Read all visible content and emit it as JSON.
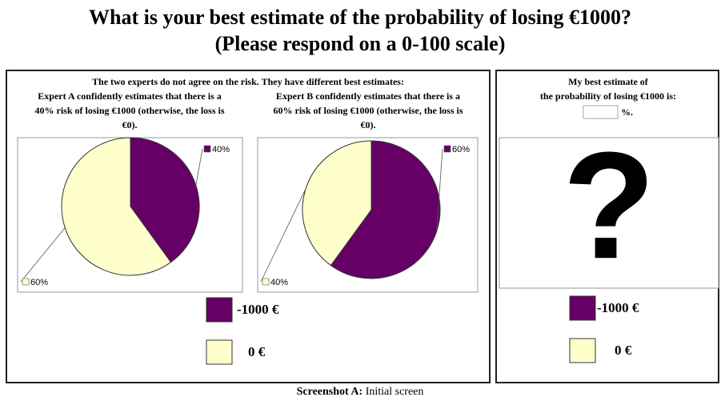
{
  "title": "What is your best estimate of the probability of losing €1000?",
  "subtitle": "(Please respond on a 0-100 scale)",
  "left_panel": {
    "heading": "The two experts do not agree on the risk.  They have different best estimates:",
    "experts": [
      {
        "lines": [
          "Expert A confidently estimates that there is a",
          "40% risk of losing €1000 (otherwise, the loss is",
          "€0)."
        ],
        "pie": {
          "type": "pie",
          "values": [
            40,
            60
          ],
          "value_labels": [
            "40%",
            "60%"
          ],
          "colors": [
            "#660066",
            "#ffffcc"
          ]
        }
      },
      {
        "lines": [
          "Expert B confidently estimates that there is a",
          "60% risk of losing €1000 (otherwise, the loss is",
          "€0)."
        ],
        "pie": {
          "type": "pie",
          "values": [
            60,
            40
          ],
          "value_labels": [
            "60%",
            "40%"
          ],
          "colors": [
            "#660066",
            "#ffffcc"
          ]
        }
      }
    ]
  },
  "legend": [
    {
      "name": "-1000 €",
      "color": "#660066"
    },
    {
      "name": "0 €",
      "color": "#ffffcc"
    }
  ],
  "right_panel": {
    "lines": [
      "My best estimate of",
      "the probability of losing €1000 is:"
    ],
    "unit": "%.",
    "placeholder": "?"
  },
  "caption": {
    "label": "Screenshot A:",
    "text": " Initial screen"
  }
}
